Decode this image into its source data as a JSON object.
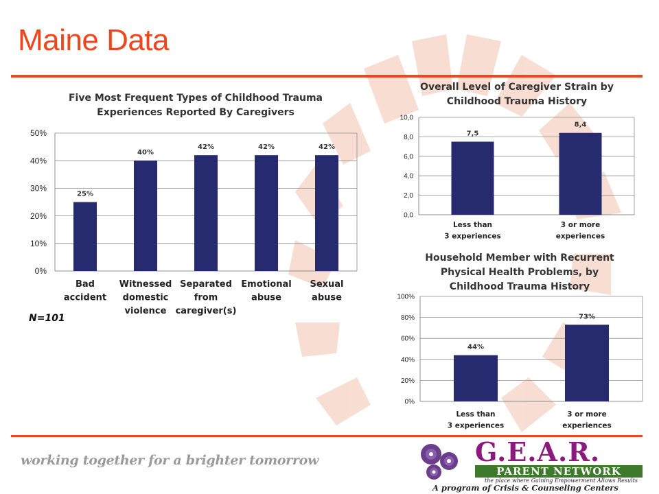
{
  "page": {
    "title": "Maine Data",
    "sample_note": "N=101",
    "tagline": "working together for a brighter tomorrow",
    "accent_color": "#f0461e",
    "bar_color": "#262a6e"
  },
  "logo": {
    "main": "G.E.A.R.",
    "sub": "PARENT NETWORK",
    "tag1": "the place where Gaining Empowerment Allows Results",
    "tag2": "A program of Crisis & Counseling Centers"
  },
  "chart_data": [
    {
      "type": "bar",
      "title": "Five Most Frequent Types of Childhood Trauma Experiences Reported By Caregivers",
      "categories": [
        "Bad accident",
        "Witnessed domestic violence",
        "Separated from caregiver(s)",
        "Emotional abuse",
        "Sexual abuse"
      ],
      "category_lines": [
        [
          "Bad",
          "accident"
        ],
        [
          "Witnessed",
          "domestic",
          "violence"
        ],
        [
          "Separated",
          "from",
          "caregiver(s)"
        ],
        [
          "Emotional",
          "abuse"
        ],
        [
          "Sexual",
          "abuse"
        ]
      ],
      "values": [
        25,
        40,
        42,
        42,
        42
      ],
      "data_labels": [
        "25%",
        "40%",
        "42%",
        "42%",
        "42%"
      ],
      "ylim": [
        0,
        50
      ],
      "yticks": [
        "0%",
        "10%",
        "20%",
        "30%",
        "40%",
        "50%"
      ],
      "grid": true
    },
    {
      "type": "bar",
      "title": "Overall Level of Caregiver Strain by Childhood Trauma History",
      "categories": [
        "Less than 3 experiences",
        "3 or more experiences"
      ],
      "category_lines": [
        [
          "Less than",
          "3 experiences"
        ],
        [
          "3 or more",
          "experiences"
        ]
      ],
      "values": [
        7.5,
        8.4
      ],
      "data_labels": [
        "7,5",
        "8,4"
      ],
      "ylim": [
        0,
        10
      ],
      "yticks": [
        "0,0",
        "2,0",
        "4,0",
        "6,0",
        "8,0",
        "10,0"
      ],
      "grid": true
    },
    {
      "type": "bar",
      "title": "Household Member with Recurrent Physical Health Problems, by Childhood Trauma History",
      "categories": [
        "Less than 3 experiences",
        "3 or more experiences"
      ],
      "category_lines": [
        [
          "Less than",
          "3 experiences"
        ],
        [
          "3 or more",
          "experiences"
        ]
      ],
      "values": [
        44,
        73
      ],
      "data_labels": [
        "44%",
        "73%"
      ],
      "ylim": [
        0,
        100
      ],
      "yticks": [
        "0%",
        "20%",
        "40%",
        "60%",
        "80%",
        "100%"
      ],
      "grid": true
    }
  ]
}
